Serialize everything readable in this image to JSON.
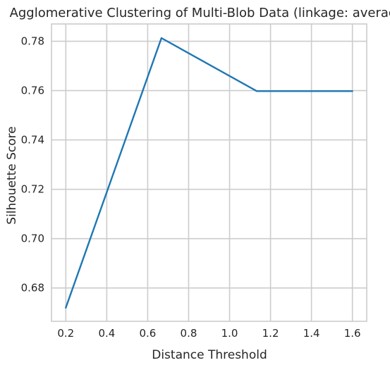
{
  "chart_data": {
    "type": "line",
    "title": "Agglomerative Clustering of Multi-Blob Data (linkage: average)",
    "xlabel": "Distance Threshold",
    "ylabel": "Silhouette Score",
    "xlim": [
      0.13,
      1.67
    ],
    "ylim": [
      0.6665,
      0.787
    ],
    "x_ticks": [
      0.2,
      0.4,
      0.6,
      0.8,
      1.0,
      1.2,
      1.4,
      1.6
    ],
    "x_tick_labels": [
      "0.2",
      "0.4",
      "0.6",
      "0.8",
      "1.0",
      "1.2",
      "1.4",
      "1.6"
    ],
    "y_ticks": [
      0.68,
      0.7,
      0.72,
      0.74,
      0.76,
      0.78
    ],
    "y_tick_labels": [
      "0.68",
      "0.70",
      "0.72",
      "0.74",
      "0.76",
      "0.78"
    ],
    "grid": true,
    "series": [
      {
        "color": "#1f77b4",
        "x": [
          0.2,
          0.667,
          1.133,
          1.6
        ],
        "y": [
          0.672,
          0.7813,
          0.7598,
          0.7598
        ]
      }
    ]
  }
}
